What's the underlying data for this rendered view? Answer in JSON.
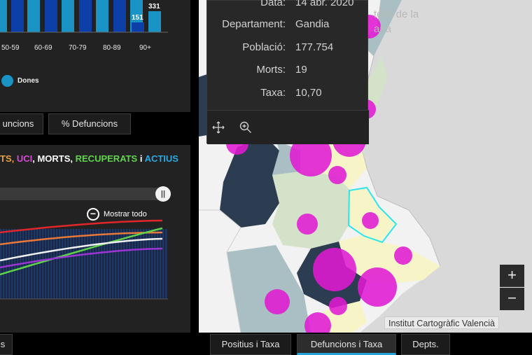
{
  "age_chart": {
    "categories": [
      "50-59",
      "60-69",
      "70-79",
      "80-89",
      "90+"
    ],
    "visible_value_labels": [
      "151",
      "331"
    ],
    "legend": {
      "label": "Dones",
      "color": "#1a93c5"
    },
    "colors": {
      "men": "#0d3fa8",
      "women": "#1a93c5"
    }
  },
  "left_tabs": {
    "defuncions_partial": "uncions",
    "pct_defuncions": "% Defuncions",
    "bottom_partial": "s"
  },
  "series_chart": {
    "title_parts": [
      {
        "text": "TS, ",
        "color": "#e8a23a"
      },
      {
        "text": "UCI",
        "color": "#d64bd4"
      },
      {
        "text": ", MORTS, ",
        "color": "#ffffff"
      },
      {
        "text": "RECUPERATS",
        "color": "#5fd34a"
      },
      {
        "text": " i ",
        "color": "#ffffff"
      },
      {
        "text": "ACTIUS",
        "color": "#2aa8e0"
      }
    ],
    "slider_handle_glyph": "||",
    "zoom_out_label": "Mostrar todo",
    "series_colors": {
      "red": "#e0262a",
      "orange": "#e8783a",
      "green": "#5fd34a",
      "white": "#f0f0f0",
      "purple": "#9b35d4"
    }
  },
  "map": {
    "label_line1": "tellò de la",
    "label_line2": "ana",
    "zoom_in": "+",
    "zoom_out": "−",
    "attribution": "Institut Cartogràfic Valencià",
    "colors": {
      "bubble": "#e01ad3",
      "dark_region": "#2c3c51",
      "mid_region": "#a9bfc3",
      "light_region": "#d3e2c8",
      "pale_region": "#f7f5c8",
      "highlight": "#2ee5e9"
    }
  },
  "popup": {
    "rows": [
      {
        "key": "Data:",
        "value": "14 abr. 2020"
      },
      {
        "key": "Departament:",
        "value": "Gandia"
      },
      {
        "key": "Població:",
        "value": "177.754"
      },
      {
        "key": "Morts:",
        "value": "19"
      },
      {
        "key": "Taxa:",
        "value": "10,70"
      }
    ],
    "icons": [
      "move-icon",
      "zoom-to-icon"
    ]
  },
  "map_tabs": {
    "positius": "Positius i Taxa",
    "defuncions": "Defuncions i Taxa",
    "depts": "Depts."
  }
}
